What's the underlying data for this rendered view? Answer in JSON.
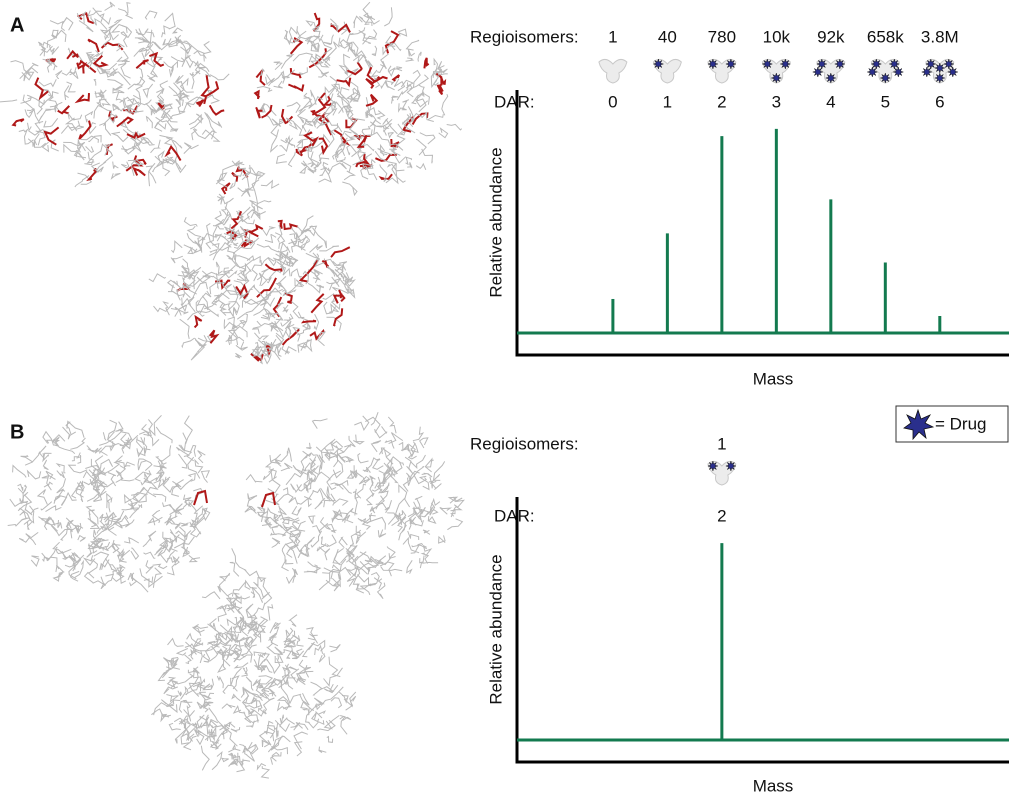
{
  "panel_labels": [
    "A",
    "B"
  ],
  "drug_key": "= Drug",
  "chart_data": [
    {
      "type": "bar",
      "regioisomers_label": "Regioisomers:",
      "regioisomers": [
        "1",
        "40",
        "780",
        "10k",
        "92k",
        "658k",
        "3.8M"
      ],
      "dar_label": "DAR:",
      "x": [
        0,
        1,
        2,
        3,
        4,
        5,
        6
      ],
      "values": [
        14,
        41,
        81,
        84,
        55,
        29,
        7
      ],
      "xlim": [
        -1.76,
        7.27
      ],
      "ylim": [
        0,
        100
      ],
      "ylabel": "Relative abundance",
      "xlabel": "Mass",
      "color": "#137a4f"
    },
    {
      "type": "bar",
      "regioisomers_label": "Regioisomers:",
      "regioisomers": [
        "1"
      ],
      "dar_label": "DAR:",
      "x": [
        2
      ],
      "values": [
        81
      ],
      "xlim": [
        -1.76,
        7.27
      ],
      "ylim": [
        0,
        100
      ],
      "ylabel": "Relative abundance",
      "xlabel": "Mass",
      "color": "#137a4f"
    }
  ]
}
